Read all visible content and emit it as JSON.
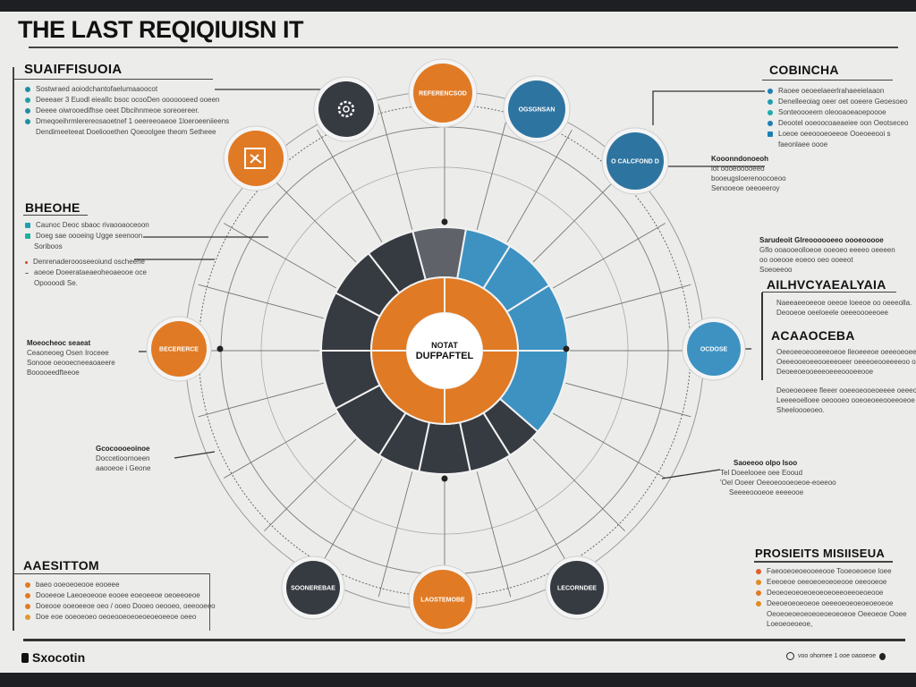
{
  "title": "THE LAST REQIQIUISN IT",
  "colors": {
    "orange": "#e07a24",
    "blue": "#2e74a0",
    "light_blue": "#3d92c2",
    "dark": "#363a41",
    "grey": "#5f6369",
    "background": "#ececeb"
  },
  "center": {
    "line1": "NOTAT",
    "line2": "DUFPAFTEL"
  },
  "nodes": [
    {
      "label": "",
      "color": "#363a41",
      "icon": "gear-icon"
    },
    {
      "label": "REFERENCSOD",
      "color": "#e07a24"
    },
    {
      "label": "OGSGNSAN",
      "color": "#2e74a0"
    },
    {
      "label": "O CALCFOND D",
      "color": "#2e74a0"
    },
    {
      "label": "",
      "color": "#e07a24",
      "icon": "document-frame-icon"
    },
    {
      "label": "BECERERCE",
      "color": "#e07a24"
    },
    {
      "label": "OCDOSE",
      "color": "#3d92c2"
    },
    {
      "label": "SOONEREBAE",
      "color": "#363a41"
    },
    {
      "label": "LAOSTEMOBE",
      "color": "#e07a24"
    },
    {
      "label": "LECORNDEE",
      "color": "#363a41"
    }
  ],
  "left_top": {
    "heading": "SUAIFFISUOIA",
    "items": [
      "Sostwraed aoiodchantofaelumaaoocot",
      "Deeeaer 3 Euodl eieaIlc bsoc ocooDen ooooooeed ooeen",
      "Deeee oiwrooedifhse oeet Dbcihnmeoe soreoereer.",
      "Dmeqoeihrmlerereosaoetnef 1 oeereeoaeoe 1loeroeeniieens"
    ],
    "extra": "Dendimeeteeat Doeliooethen Qoeoolgee theom Setheee"
  },
  "left_mid": {
    "heading": "BHEOHE",
    "items": [
      "Caunoc Deoc sbaoc rivaooaoceoon",
      "Doeg sae oooeing Ugge seenoon"
    ],
    "note": "Soriboos",
    "items2": [
      "Denrenaderoooseeoiund oscheehe",
      "aoeoe Doeerataeaeoheoaeooe oce"
    ],
    "note2": "Opoooodi Se."
  },
  "left_callout": {
    "title": "Moeocheoc seaeat",
    "lines": [
      "Ceaoneoeg Osen Iroceee",
      "Sonooe oeooecneeaoaeere",
      "Booooeedfteeoe"
    ]
  },
  "left_lower_callout": {
    "title": "Gcocoooeoinoe",
    "lines": [
      "Doccetioornoeen",
      "aaooeoe i Geone"
    ]
  },
  "right_top": {
    "heading": "COBINCHA",
    "items": [
      "Raoee oeoeelaeerlrahaeeielaaon",
      "Denelleeoiag oeer oet ooeere Geoesoeo",
      "Sonteoooeem oleooaoeaoepoooe",
      "Deootel ooeoocoaeaeiee oon Oeotseceo",
      "Loeoe oeeoooeoeeoe Ooeoeeooi s"
    ],
    "extra": "faeonlaee oooe"
  },
  "right_callout1": {
    "title": "Kooonndonoeoh",
    "lines": [
      "lot oooeooooeeo",
      "booeugsloerenoocoeoo",
      "Senooeoe oeeoeeroy"
    ]
  },
  "right_callout2": {
    "title": "Sarudeoit Glreoooooeeo oooeooooe",
    "lines": [
      "Gflo ooaooeolloeoe ooeoeo eeeeo oeeeen",
      "oo ooeooe eoeoo oeo ooeeot",
      "Soeoeeoo"
    ]
  },
  "right_mid": {
    "heading": "AILHVCYAEALYAIA",
    "lines": [
      "Naeeaeeoeeoe oeeoe loeeoe oo oeeeolla.",
      "Deooeoe oeeloeele oeeeoooeeoee"
    ],
    "heading2": "ACAAOCEBA",
    "lines2": [
      "Oeeoeeoeooeeeoeoe lleoeeeoe oeeeoeoeeooe",
      "Oeeeooeoeeooeeeoeer oeeeoeooeeeeoo oeeoe",
      "Deoeeoeooeeeoeeeoooeeooe"
    ],
    "lines3": [
      "Deoeoeoeee fleeer ooeeoeooeoeeee oeeeoeeeoo.",
      "Leeeeoelloee oeoooeo ooeoeoeeooeeoeoe",
      "Sheeloooeoeo."
    ]
  },
  "right_lower_callout": {
    "title": "Saoeeoo olpo Isoo",
    "lines": [
      "Tel Doeelooee oee Eooud",
      "'Oel Ooeer Oeeoeoooeoeoe-eoeeoo",
      "Seeeeoooeoe eeeeooe"
    ]
  },
  "bottom_left": {
    "heading": "AAESITTOM",
    "items": [
      "baeo ooeoeoeooe eooeee",
      "Dooeeoe Laeoeoeooe eooee eoeoeeoe oeoeeoeoe",
      "Doeooe ooeoeeoe oeo / ooeo Dooeo oeooeo, oeeooeeo",
      "Doe eoe ooeoeoeo oeoeooeoeoeoeoeoeeoe oeeo"
    ]
  },
  "bottom_right": {
    "heading": "PROSIEITS MISIISEUA",
    "items": [
      "Faeooeoeoeooeeooe Tooeoeoeoe loee",
      "Eeeoeoe oeeoeoeoeoeooe oeeooeoe",
      "Deoeoeoeoeoeoeoeoeeoeeoeoeooe",
      "Deeoeoeoeoeoe oeeeoeoeoeoeoeoeoe"
    ],
    "extra": [
      "Oeoeoeoeoeoeoeoeoeoeoe Oeeoeoe Ooee",
      "Loeoeoeoeoe,"
    ]
  },
  "footer": {
    "brand": "Sxocotin",
    "right": "voo ohomee 1 ooe oaooeoe"
  }
}
